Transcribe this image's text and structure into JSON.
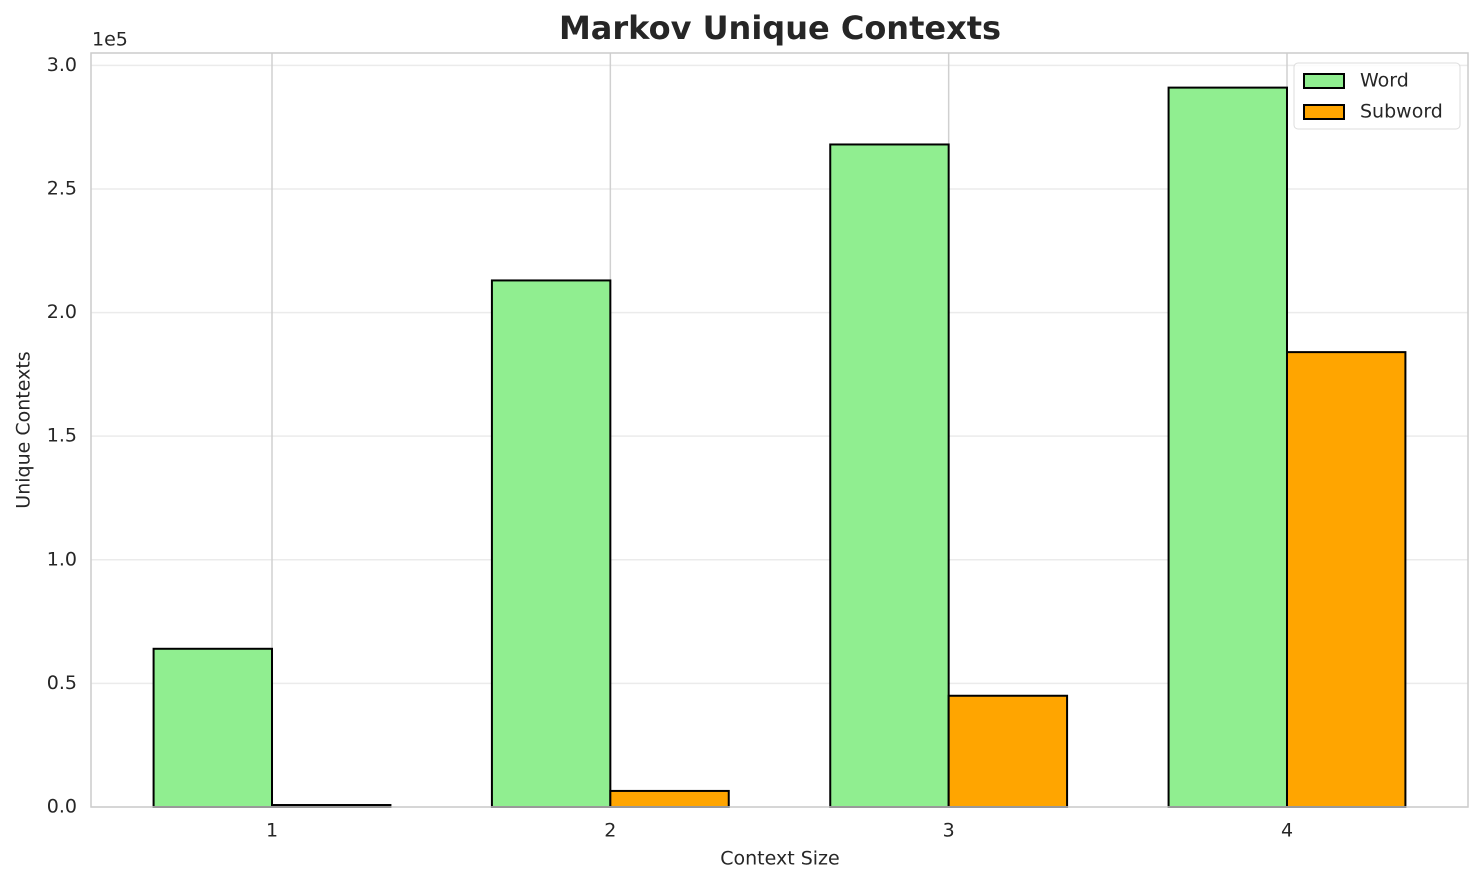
{
  "chart_data": {
    "type": "bar",
    "title": "Markov Unique Contexts",
    "x_label": "Context Size",
    "y_label": "Unique Contexts",
    "y_offset_label": "1e5",
    "categories": [
      "1",
      "2",
      "3",
      "4"
    ],
    "series": [
      {
        "name": "Word",
        "color": "#90ee90",
        "values": [
          64000,
          213000,
          268000,
          291000
        ]
      },
      {
        "name": "Subword",
        "color": "#ffa500",
        "values": [
          800,
          6500,
          45000,
          184000
        ]
      }
    ],
    "ylim": [
      0,
      305000
    ],
    "yticks": [
      {
        "value": 0,
        "label": "0.0"
      },
      {
        "value": 50000,
        "label": "0.5"
      },
      {
        "value": 100000,
        "label": "1.0"
      },
      {
        "value": 150000,
        "label": "1.5"
      },
      {
        "value": 200000,
        "label": "2.0"
      },
      {
        "value": 250000,
        "label": "2.5"
      },
      {
        "value": 300000,
        "label": "3.0"
      }
    ],
    "grid": true,
    "legend": "upper right"
  }
}
